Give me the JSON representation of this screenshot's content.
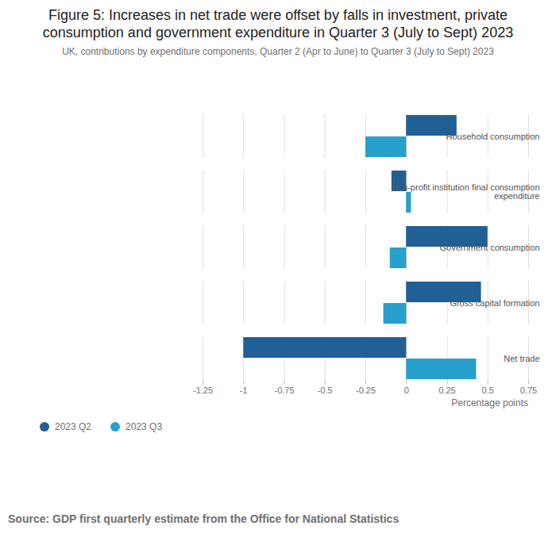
{
  "chart_data": {
    "type": "bar",
    "orientation": "horizontal",
    "title": "Figure 5: Increases in net trade were offset by falls in investment, private consumption and government expenditure in Quarter 3 (July to Sept) 2023",
    "subtitle": "UK, contributions by expenditure components, Quarter 2 (Apr to June) to Quarter 3 (July to Sept) 2023",
    "xlabel": "Percentage points",
    "source": "Source: GDP first quarterly estimate from the Office for National Statistics",
    "categories": [
      "Household consumption",
      "Non-profit institution final consumption expenditure",
      "Government consumption",
      "Gross capital formation",
      "Net trade"
    ],
    "series": [
      {
        "name": "2023 Q2",
        "color": "#206095",
        "values": [
          0.31,
          -0.09,
          0.5,
          0.46,
          -1.0
        ]
      },
      {
        "name": "2023 Q3",
        "color": "#27a0cc",
        "values": [
          -0.25,
          0.03,
          -0.1,
          -0.14,
          0.43
        ]
      }
    ],
    "xlim": [
      -1.25,
      0.75
    ],
    "xticks": [
      -1.25,
      -1,
      -0.75,
      -0.5,
      -0.25,
      0,
      0.25,
      0.5,
      0.75
    ],
    "grid": true,
    "legend": "bottom-left"
  }
}
